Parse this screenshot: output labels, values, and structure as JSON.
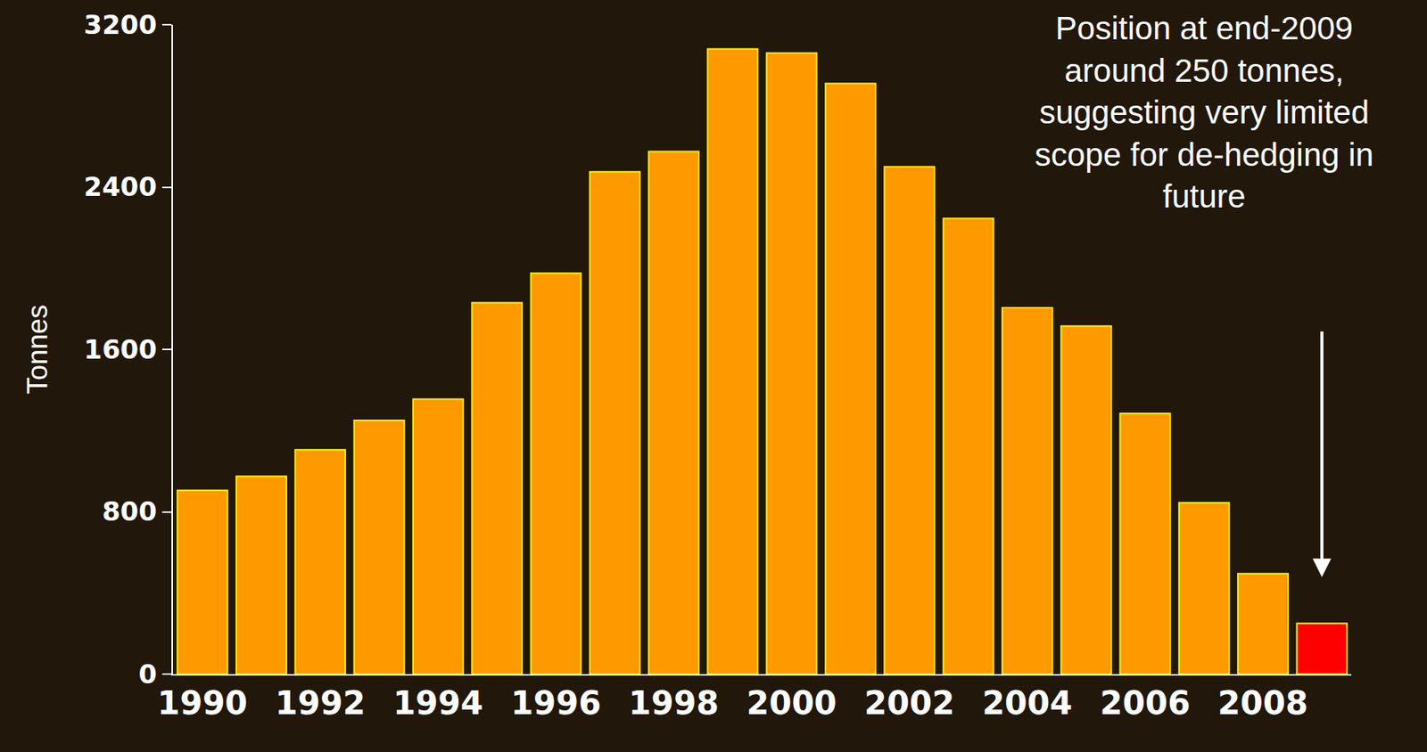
{
  "chart_data": {
    "type": "bar",
    "x": [
      1990,
      1991,
      1992,
      1993,
      1994,
      1995,
      1996,
      1997,
      1998,
      1999,
      2000,
      2001,
      2002,
      2003,
      2004,
      2005,
      2006,
      2007,
      2008,
      2009
    ],
    "values": [
      905,
      975,
      1105,
      1250,
      1355,
      1830,
      1975,
      2475,
      2575,
      3080,
      3060,
      2910,
      2500,
      2245,
      1805,
      1715,
      1285,
      845,
      495,
      250
    ],
    "colors": [
      "#ff9900",
      "#ff9900",
      "#ff9900",
      "#ff9900",
      "#ff9900",
      "#ff9900",
      "#ff9900",
      "#ff9900",
      "#ff9900",
      "#ff9900",
      "#ff9900",
      "#ff9900",
      "#ff9900",
      "#ff9900",
      "#ff9900",
      "#ff9900",
      "#ff9900",
      "#ff9900",
      "#ff9900",
      "#ff0000"
    ],
    "xlim": [
      1989.5,
      2009.5
    ],
    "xticks": [
      1990,
      1992,
      1994,
      1996,
      1998,
      2000,
      2002,
      2004,
      2006,
      2008
    ],
    "ylim": [
      0,
      3200
    ],
    "yticks": [
      0,
      800,
      1600,
      2400,
      3200
    ],
    "y_label": "Tonnes",
    "grid": false,
    "annotations": [
      {
        "text": "Position at end-2009 around 250 tonnes, suggesting very limited scope for de-hedging in future",
        "x": 2009,
        "y": 250
      }
    ]
  }
}
